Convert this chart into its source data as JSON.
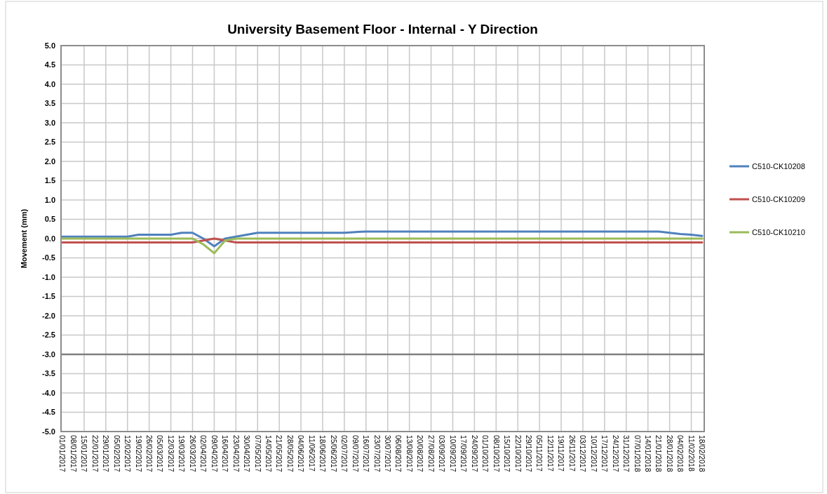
{
  "chart_data": {
    "type": "line",
    "title": "University Basement Floor - Internal - Y Direction",
    "ylabel": "Movement (mm)",
    "categories": [
      "01/01/2017",
      "08/01/2017",
      "15/01/2017",
      "22/01/2017",
      "29/01/2017",
      "05/02/2017",
      "12/02/2017",
      "19/02/2017",
      "26/02/2017",
      "05/03/2017",
      "12/03/2017",
      "19/03/2017",
      "26/03/2017",
      "02/04/2017",
      "09/04/2017",
      "16/04/2017",
      "23/04/2017",
      "30/04/2017",
      "07/05/2017",
      "14/05/2017",
      "21/05/2017",
      "28/05/2017",
      "04/06/2017",
      "11/06/2017",
      "18/06/2017",
      "25/06/2017",
      "02/07/2017",
      "09/07/2017",
      "16/07/2017",
      "23/07/2017",
      "30/07/2017",
      "06/08/2017",
      "13/08/2017",
      "20/08/2017",
      "27/08/2017",
      "03/09/2017",
      "10/09/2017",
      "17/09/2017",
      "24/09/2017",
      "01/10/2017",
      "08/10/2017",
      "15/10/2017",
      "22/10/2017",
      "29/10/2017",
      "05/11/2017",
      "12/11/2017",
      "19/11/2017",
      "26/11/2017",
      "03/12/2017",
      "10/12/2017",
      "17/12/2017",
      "24/12/2017",
      "31/12/2017",
      "07/01/2018",
      "14/01/2018",
      "21/01/2018",
      "28/01/2018",
      "04/02/2018",
      "11/02/2018",
      "18/02/2018"
    ],
    "series": [
      {
        "name": "C510-CK10208",
        "color": "#4f81bd",
        "values": [
          0.05,
          0.05,
          0.05,
          0.05,
          0.05,
          0.05,
          0.05,
          0.1,
          0.1,
          0.1,
          0.1,
          0.15,
          0.15,
          0.0,
          -0.2,
          0.0,
          0.05,
          0.1,
          0.15,
          0.15,
          0.15,
          0.15,
          0.15,
          0.15,
          0.15,
          0.15,
          0.15,
          0.17,
          0.18,
          0.18,
          0.18,
          0.18,
          0.18,
          0.18,
          0.18,
          0.18,
          0.18,
          0.18,
          0.18,
          0.18,
          0.18,
          0.18,
          0.18,
          0.18,
          0.18,
          0.18,
          0.18,
          0.18,
          0.18,
          0.18,
          0.18,
          0.18,
          0.18,
          0.18,
          0.18,
          0.18,
          0.15,
          0.12,
          0.1,
          0.07
        ]
      },
      {
        "name": "C510-CK10209",
        "color": "#c0504d",
        "values": [
          -0.1,
          -0.1,
          -0.1,
          -0.1,
          -0.1,
          -0.1,
          -0.1,
          -0.1,
          -0.1,
          -0.1,
          -0.1,
          -0.1,
          -0.1,
          -0.05,
          0.0,
          -0.05,
          -0.1,
          -0.1,
          -0.1,
          -0.1,
          -0.1,
          -0.1,
          -0.1,
          -0.1,
          -0.1,
          -0.1,
          -0.1,
          -0.1,
          -0.1,
          -0.1,
          -0.1,
          -0.1,
          -0.1,
          -0.1,
          -0.1,
          -0.1,
          -0.1,
          -0.1,
          -0.1,
          -0.1,
          -0.1,
          -0.1,
          -0.1,
          -0.1,
          -0.1,
          -0.1,
          -0.1,
          -0.1,
          -0.1,
          -0.1,
          -0.1,
          -0.1,
          -0.1,
          -0.1,
          -0.1,
          -0.1,
          -0.1,
          -0.1,
          -0.1,
          -0.1
        ]
      },
      {
        "name": "C510-CK10210",
        "color": "#9bbb59",
        "values": [
          0,
          0,
          0,
          0,
          0,
          0,
          0,
          0,
          0,
          0,
          0,
          0,
          0,
          -0.15,
          -0.38,
          -0.05,
          0,
          0,
          0,
          0,
          0,
          0,
          0,
          0,
          0,
          0,
          0,
          0,
          0,
          0,
          0,
          0,
          0,
          0,
          0,
          0,
          0,
          0,
          0,
          0,
          0,
          0,
          0,
          0,
          0,
          0,
          0,
          0,
          0,
          0,
          0,
          0,
          0,
          0,
          0,
          0,
          0,
          0,
          0,
          0
        ]
      }
    ],
    "ylim": [
      -5,
      5
    ],
    "yticks": [
      {
        "value": -5,
        "label": "-5.0"
      },
      {
        "value": -4.5,
        "label": "-4.5"
      },
      {
        "value": -4,
        "label": "-4.0"
      },
      {
        "value": -3.5,
        "label": "-3.5"
      },
      {
        "value": -3,
        "label": "-3.0"
      },
      {
        "value": -2.5,
        "label": "-2.5"
      },
      {
        "value": -2,
        "label": "-2.0"
      },
      {
        "value": -1.5,
        "label": "-1.5"
      },
      {
        "value": -1,
        "label": "-1.0"
      },
      {
        "value": -0.5,
        "label": "-0.5"
      },
      {
        "value": 0,
        "label": "0.0"
      },
      {
        "value": 0.5,
        "label": "0.5"
      },
      {
        "value": 1,
        "label": "1.0"
      },
      {
        "value": 1.5,
        "label": "1.5"
      },
      {
        "value": 2,
        "label": "2.0"
      },
      {
        "value": 2.5,
        "label": "2.5"
      },
      {
        "value": 3,
        "label": "3.0"
      },
      {
        "value": 3.5,
        "label": "3.5"
      },
      {
        "value": 4,
        "label": "4.0"
      },
      {
        "value": 4.5,
        "label": "4.5"
      },
      {
        "value": 5,
        "label": "5.0"
      }
    ],
    "ref_lines": [
      {
        "axis": "y",
        "value": -3,
        "color": "#7f7f7f"
      }
    ],
    "grid": true,
    "legend": "right",
    "marker": "none",
    "line_style": "solid"
  }
}
